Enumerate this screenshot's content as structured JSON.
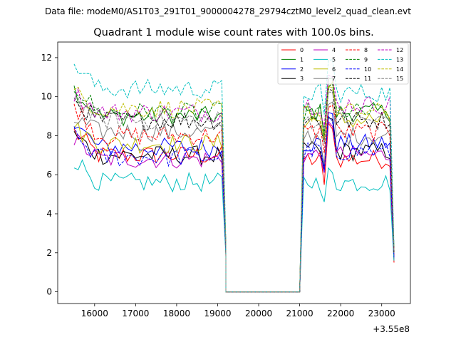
{
  "header": {
    "data_file": "Data file: modeM0/AS1T03_291T01_9000004278_29794cztM0_level2_quad_clean.evt"
  },
  "chart_data": {
    "type": "line",
    "title": "Quadrant 1 module wise count rates with 100.0s bins.",
    "xlabel": "",
    "ylabel": "",
    "x_offset_label": "+3.55e8",
    "xlim": [
      15100,
      23700
    ],
    "ylim": [
      -0.6,
      12.8
    ],
    "xticks": [
      16000,
      17000,
      18000,
      19000,
      20000,
      21000,
      22000,
      23000
    ],
    "xtick_labels": [
      "16000",
      "17000",
      "18000",
      "19000",
      "20000",
      "21000",
      "22000",
      "23000"
    ],
    "yticks": [
      0,
      2,
      4,
      6,
      8,
      10,
      12
    ],
    "ytick_labels": [
      "0",
      "2",
      "4",
      "6",
      "8",
      "10",
      "12"
    ],
    "legend_position": "top-right",
    "segments": {
      "first": {
        "start": 15500,
        "end": 19100,
        "step": 100
      },
      "gap": {
        "start": 19200,
        "end": 21000,
        "value": 0
      },
      "second": {
        "start": 21100,
        "end": 23200,
        "step": 100
      },
      "end": {
        "x": 23300
      }
    },
    "series": [
      {
        "name": "0",
        "color": "#ff0000",
        "dash": "solid",
        "level1": 7.0,
        "start1": 8.2,
        "level2": 6.8,
        "peak2": 8.5,
        "end_value": 1.5
      },
      {
        "name": "1",
        "color": "#008000",
        "dash": "solid",
        "level1": 9.0,
        "start1": 10.4,
        "level2": 9.2,
        "peak2": 10.8,
        "end_value": 2.0
      },
      {
        "name": "2",
        "color": "#0000ff",
        "dash": "solid",
        "level1": 7.4,
        "start1": 8.6,
        "level2": 7.6,
        "peak2": 9.2,
        "end_value": 1.8
      },
      {
        "name": "3",
        "color": "#000000",
        "dash": "solid",
        "level1": 7.0,
        "start1": 8.0,
        "level2": 7.2,
        "peak2": 8.8,
        "end_value": 1.7
      },
      {
        "name": "4",
        "color": "#bf00bf",
        "dash": "solid",
        "level1": 6.8,
        "start1": 7.8,
        "level2": 7.0,
        "peak2": 8.6,
        "end_value": 1.7
      },
      {
        "name": "5",
        "color": "#00bfbf",
        "dash": "solid",
        "level1": 5.6,
        "start1": 6.8,
        "level2": 5.6,
        "peak2": 6.2,
        "end_value": 1.6
      },
      {
        "name": "6",
        "color": "#bfbf00",
        "dash": "solid",
        "level1": 7.6,
        "start1": 8.4,
        "level2": 8.8,
        "peak2": 10.6,
        "end_value": 2.0
      },
      {
        "name": "7",
        "color": "#808080",
        "dash": "solid",
        "level1": 8.2,
        "start1": 8.8,
        "level2": 8.0,
        "peak2": 9.6,
        "end_value": 1.9
      },
      {
        "name": "8",
        "color": "#ff0000",
        "dash": "dashed",
        "level1": 8.0,
        "start1": 9.6,
        "level2": 8.2,
        "peak2": 9.6,
        "end_value": 1.9
      },
      {
        "name": "9",
        "color": "#008000",
        "dash": "dashed",
        "level1": 9.2,
        "start1": 10.6,
        "level2": 9.2,
        "peak2": 10.6,
        "end_value": 2.1
      },
      {
        "name": "10",
        "color": "#0000ff",
        "dash": "dashed",
        "level1": 6.9,
        "start1": 8.0,
        "level2": 7.2,
        "peak2": 8.8,
        "end_value": 1.8
      },
      {
        "name": "11",
        "color": "#000000",
        "dash": "dashed",
        "level1": 8.8,
        "start1": 9.8,
        "level2": 8.8,
        "peak2": 10.4,
        "end_value": 2.0
      },
      {
        "name": "12",
        "color": "#bf00bf",
        "dash": "dashed",
        "level1": 9.2,
        "start1": 10.2,
        "level2": 9.6,
        "peak2": 11.0,
        "end_value": 2.1
      },
      {
        "name": "13",
        "color": "#00bfbf",
        "dash": "dashed",
        "level1": 10.4,
        "start1": 11.7,
        "level2": 10.2,
        "peak2": 11.8,
        "end_value": 2.3
      },
      {
        "name": "14",
        "color": "#bfbf00",
        "dash": "dashed",
        "level1": 9.4,
        "start1": 10.2,
        "level2": 9.2,
        "peak2": 10.6,
        "end_value": 2.1
      },
      {
        "name": "15",
        "color": "#808080",
        "dash": "dashed",
        "level1": 8.8,
        "start1": 10.0,
        "level2": 8.8,
        "peak2": 10.2,
        "end_value": 2.0
      }
    ]
  }
}
